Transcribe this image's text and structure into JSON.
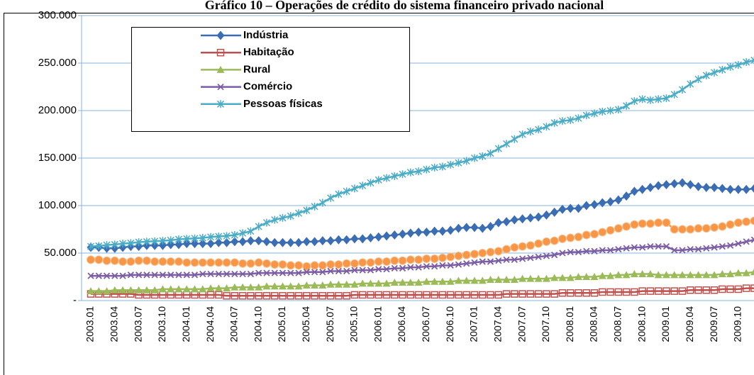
{
  "chart_data": {
    "type": "line",
    "title": "Gráfico 10 – Operações de crédito do sistema financeiro privado nacional",
    "categories": [
      "2003.01",
      null,
      null,
      "2003.04",
      null,
      null,
      "2003.07",
      null,
      null,
      "2003.10",
      null,
      null,
      "2004.01",
      null,
      null,
      "2004.04",
      null,
      null,
      "2004.07",
      null,
      null,
      "2004.10",
      null,
      null,
      "2005.01",
      null,
      null,
      "2005.04",
      null,
      null,
      "2005.07",
      null,
      null,
      "2005.10",
      null,
      null,
      "2006.01",
      null,
      null,
      "2006.04",
      null,
      null,
      "2006.07",
      null,
      null,
      "2006.10",
      null,
      null,
      "2007.01",
      null,
      null,
      "2007.04",
      null,
      null,
      "2007.07",
      null,
      null,
      "2007.10",
      null,
      null,
      "2008.01",
      null,
      null,
      "2008.04",
      null,
      null,
      "2008.07",
      null,
      null,
      "2008.10",
      null,
      null,
      "2009.01",
      null,
      null,
      "2009.04",
      null,
      null,
      "2009.07",
      null,
      null,
      "2009.10",
      null,
      null
    ],
    "ylim": [
      0,
      300000
    ],
    "yticks": [
      {
        "value": 0,
        "label": "-"
      },
      {
        "value": 50000,
        "label": "50.000"
      },
      {
        "value": 100000,
        "label": "100.000"
      },
      {
        "value": 150000,
        "label": "150.000"
      },
      {
        "value": 200000,
        "label": "200.000"
      },
      {
        "value": 250000,
        "label": "250.000"
      },
      {
        "value": 300000,
        "label": "300.000"
      }
    ],
    "grid": true,
    "legend": "top-left",
    "series": [
      {
        "name": "Indústria",
        "color": "#3a6db3",
        "marker": "diamond",
        "values": [
          56000,
          56000,
          55000,
          55000,
          56000,
          57000,
          57000,
          58000,
          58000,
          58000,
          59000,
          59000,
          60000,
          60000,
          60000,
          60000,
          61000,
          61000,
          62000,
          62000,
          63000,
          63000,
          62000,
          61000,
          61000,
          61000,
          61000,
          62000,
          62000,
          63000,
          63000,
          64000,
          64000,
          65000,
          65000,
          66000,
          67000,
          68000,
          69000,
          70000,
          71000,
          72000,
          72000,
          73000,
          73000,
          74000,
          76000,
          77000,
          77000,
          76000,
          78000,
          82000,
          83000,
          85000,
          86000,
          87000,
          88000,
          90000,
          93000,
          96000,
          97000,
          97000,
          100000,
          101000,
          103000,
          104000,
          106000,
          110000,
          115000,
          117000,
          119000,
          121000,
          122000,
          123000,
          124000,
          122000,
          120000,
          119000,
          119000,
          118000,
          117000,
          117000,
          117000,
          118000
        ]
      },
      {
        "name": "Habitação",
        "color": "#c0504d",
        "marker": "square",
        "values": [
          7000,
          7000,
          7000,
          7000,
          7000,
          7000,
          6000,
          6000,
          6000,
          6000,
          6000,
          6000,
          6000,
          6000,
          6000,
          6000,
          6000,
          5000,
          5000,
          5000,
          5000,
          5000,
          5000,
          5000,
          5000,
          5000,
          5000,
          5000,
          5000,
          5000,
          5000,
          5000,
          5000,
          6000,
          6000,
          6000,
          6000,
          6000,
          6000,
          6000,
          6000,
          6000,
          6000,
          6000,
          6000,
          6000,
          6000,
          6000,
          6000,
          6000,
          6000,
          6000,
          7000,
          7000,
          7000,
          7000,
          7000,
          7000,
          7000,
          8000,
          8000,
          8000,
          8000,
          8000,
          9000,
          9000,
          9000,
          9000,
          9000,
          10000,
          10000,
          10000,
          10000,
          10000,
          10000,
          11000,
          11000,
          11000,
          11000,
          12000,
          12000,
          12000,
          13000,
          13000
        ]
      },
      {
        "name": "Rural",
        "color": "#9bbb59",
        "marker": "triangle",
        "values": [
          10000,
          10000,
          10000,
          11000,
          11000,
          11000,
          11000,
          11000,
          11000,
          12000,
          12000,
          12000,
          12000,
          12000,
          12000,
          13000,
          13000,
          13000,
          14000,
          14000,
          14000,
          14000,
          15000,
          15000,
          15000,
          15000,
          15000,
          16000,
          16000,
          16000,
          17000,
          17000,
          17000,
          17000,
          18000,
          18000,
          18000,
          18000,
          19000,
          19000,
          19000,
          19000,
          20000,
          20000,
          20000,
          20000,
          21000,
          21000,
          21000,
          21000,
          22000,
          22000,
          22000,
          22000,
          23000,
          23000,
          23000,
          23000,
          24000,
          24000,
          24000,
          25000,
          25000,
          25000,
          26000,
          26000,
          27000,
          27000,
          28000,
          28000,
          28000,
          27000,
          27000,
          27000,
          27000,
          27000,
          27000,
          27000,
          27000,
          28000,
          28000,
          29000,
          29000,
          30000
        ]
      },
      {
        "name": "Comércio",
        "color": "#7b5ea3",
        "marker": "cross",
        "values": [
          26000,
          26000,
          26000,
          26000,
          26000,
          27000,
          27000,
          27000,
          27000,
          27000,
          27000,
          27000,
          27000,
          27000,
          28000,
          28000,
          28000,
          28000,
          28000,
          28000,
          28000,
          29000,
          29000,
          29000,
          29000,
          29000,
          29000,
          30000,
          30000,
          30000,
          31000,
          31000,
          31000,
          32000,
          32000,
          32000,
          33000,
          33000,
          34000,
          34000,
          35000,
          35000,
          36000,
          36000,
          37000,
          37000,
          38000,
          39000,
          40000,
          41000,
          41000,
          42000,
          43000,
          43000,
          44000,
          45000,
          46000,
          47000,
          48000,
          50000,
          51000,
          51000,
          52000,
          52000,
          53000,
          53000,
          54000,
          55000,
          56000,
          56000,
          57000,
          57000,
          57000,
          53000,
          53000,
          54000,
          54000,
          55000,
          56000,
          57000,
          58000,
          60000,
          62000,
          64000
        ]
      },
      {
        "name": "Pessoas físicas",
        "color": "#4bacc6",
        "marker": "star",
        "values": [
          57000,
          57500,
          58500,
          59000,
          60000,
          60500,
          61500,
          62000,
          62500,
          63000,
          63500,
          64500,
          65000,
          65500,
          66000,
          67000,
          67500,
          68000,
          69000,
          71000,
          73000,
          78000,
          82000,
          85000,
          87000,
          89000,
          92000,
          95000,
          99000,
          103000,
          108000,
          112000,
          115000,
          118000,
          121000,
          124000,
          127000,
          129000,
          131000,
          133000,
          135000,
          136000,
          138000,
          140000,
          141000,
          143000,
          145000,
          147000,
          150000,
          152000,
          155000,
          160000,
          165000,
          170000,
          175000,
          178000,
          180000,
          183000,
          187000,
          189000,
          190000,
          192000,
          195000,
          197000,
          199000,
          200000,
          201000,
          205000,
          210000,
          212000,
          211000,
          212000,
          213000,
          217000,
          222000,
          228000,
          233000,
          237000,
          240000,
          243000,
          246000,
          248000,
          251000,
          253000
        ]
      },
      {
        "color": "#f79646",
        "marker": "circle",
        "values": [
          43000,
          43000,
          42000,
          42000,
          41000,
          41000,
          42000,
          42000,
          41000,
          41000,
          41000,
          41000,
          40000,
          40000,
          40000,
          40000,
          40000,
          40000,
          40000,
          39000,
          39000,
          40000,
          39000,
          38000,
          38000,
          37000,
          37000,
          36000,
          37000,
          37000,
          38000,
          38000,
          39000,
          39000,
          40000,
          40000,
          41000,
          41000,
          42000,
          42000,
          43000,
          43000,
          44000,
          44000,
          45000,
          46000,
          47000,
          48000,
          49000,
          50000,
          51000,
          52000,
          54000,
          56000,
          57000,
          58000,
          60000,
          62000,
          63000,
          65000,
          66000,
          67000,
          69000,
          70000,
          72000,
          74000,
          76000,
          78000,
          80000,
          81000,
          81000,
          82000,
          82000,
          75000,
          75000,
          75000,
          76000,
          76000,
          77000,
          78000,
          80000,
          82000,
          83000,
          84000
        ]
      }
    ]
  }
}
